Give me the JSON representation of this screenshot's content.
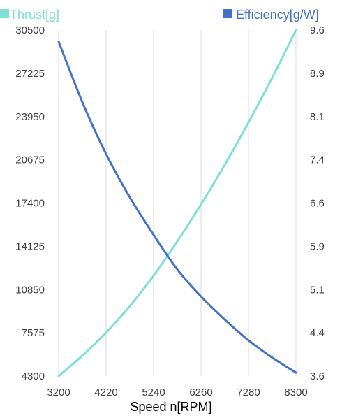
{
  "chart_data": {
    "type": "line",
    "xlabel": "Speed n[RPM]",
    "x_ticks": [
      "3200",
      "4220",
      "5240",
      "6260",
      "7280",
      "8300"
    ],
    "xlim": [
      3200,
      8300
    ],
    "y_left_ticks": [
      "30500",
      "27225",
      "23950",
      "20675",
      "17400",
      "14125",
      "10850",
      "7575",
      "4300"
    ],
    "ylim_left": [
      4300,
      30500
    ],
    "y_right_ticks": [
      "9.6",
      "8.9",
      "8.1",
      "7.4",
      "6.6",
      "5.9",
      "5.1",
      "4.4",
      "3.6"
    ],
    "ylim_right": [
      3.6,
      9.6
    ],
    "grid": "vertical",
    "legend_position": "top",
    "series": [
      {
        "name": "Thrust[g]",
        "axis": "left",
        "color": "#7fded6",
        "x": [
          3200,
          3710,
          4220,
          4730,
          5240,
          5750,
          6260,
          6770,
          7280,
          7790,
          8300
        ],
        "y": [
          4300,
          5850,
          7600,
          9600,
          11900,
          14500,
          17300,
          20300,
          23500,
          26900,
          30500
        ]
      },
      {
        "name": "Efficiency[g/W]",
        "axis": "right",
        "color": "#4472c4",
        "x": [
          3200,
          3710,
          4220,
          4730,
          5240,
          5750,
          6260,
          6770,
          7280,
          7790,
          8300
        ],
        "y": [
          9.4,
          8.35,
          7.45,
          6.7,
          6.05,
          5.45,
          4.98,
          4.58,
          4.22,
          3.92,
          3.66
        ]
      }
    ]
  }
}
